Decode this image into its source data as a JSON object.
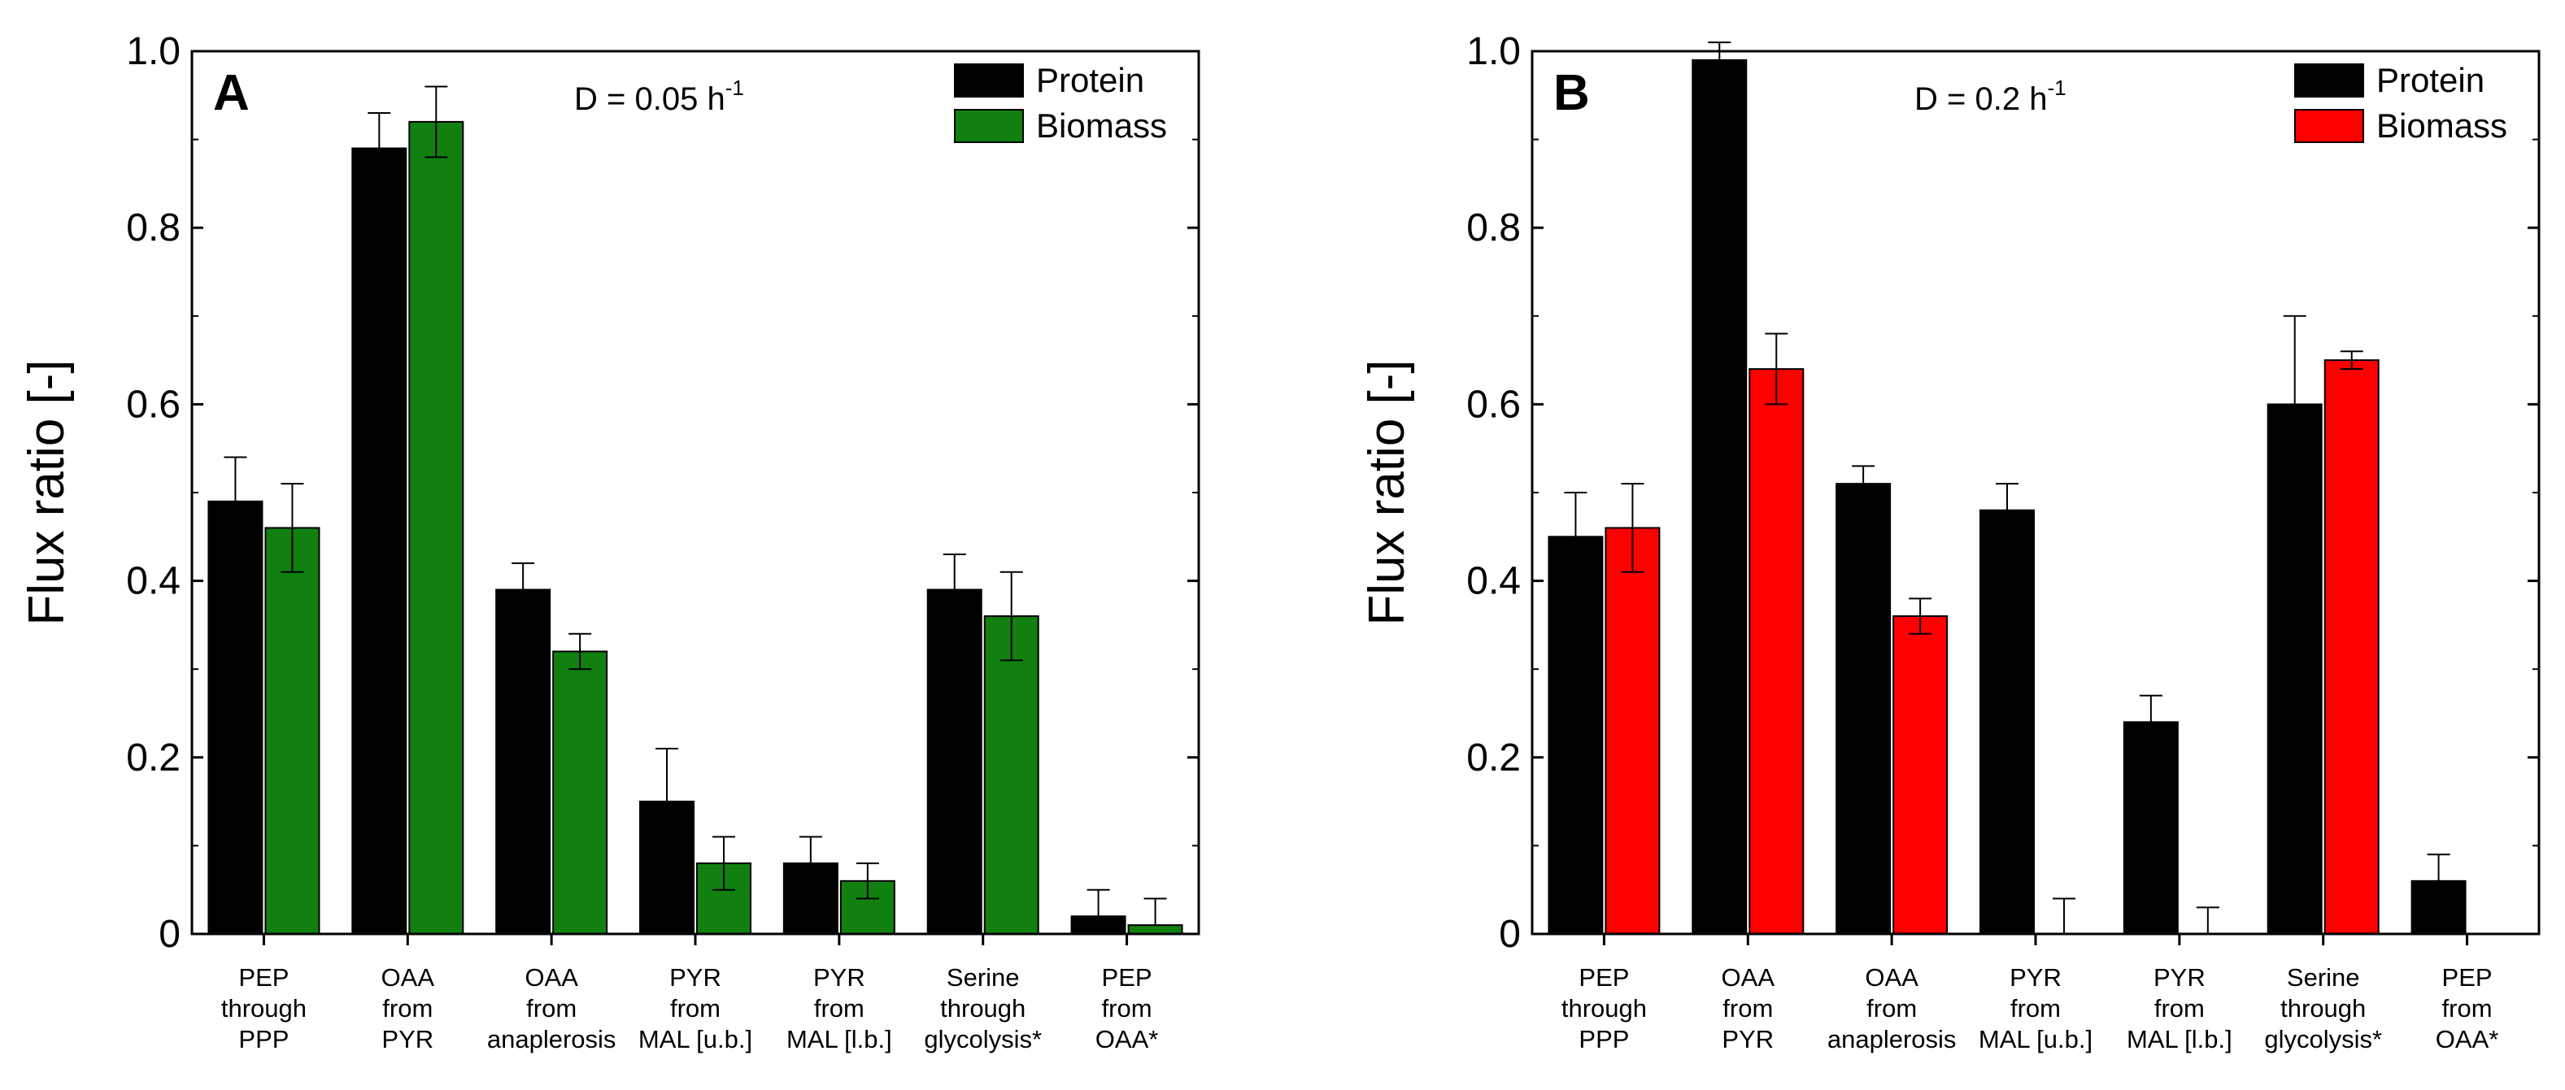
{
  "chart_data": [
    {
      "type": "bar",
      "panel_label": "A",
      "condition_label": "D = 0.05 h",
      "condition_sup": "-1",
      "ylabel": "Flux ratio [-]",
      "ylim": [
        0,
        1.0
      ],
      "yticks": [
        "0",
        "0.2",
        "0.4",
        "0.6",
        "0.8",
        "1.0"
      ],
      "categories": [
        [
          "PEP",
          "through",
          "PPP"
        ],
        [
          "OAA",
          "from",
          "PYR"
        ],
        [
          "OAA",
          "from",
          "anaplerosis"
        ],
        [
          "PYR",
          "from",
          "MAL [u.b.]"
        ],
        [
          "PYR",
          "from",
          "MAL [l.b.]"
        ],
        [
          "Serine",
          "through",
          "glycolysis*"
        ],
        [
          "PEP",
          "from",
          "OAA*"
        ]
      ],
      "series": [
        {
          "name": "Protein",
          "color": "#000000",
          "values": [
            0.49,
            0.89,
            0.39,
            0.15,
            0.08,
            0.39,
            0.02
          ],
          "errors": [
            0.05,
            0.04,
            0.03,
            0.06,
            0.03,
            0.04,
            0.03
          ]
        },
        {
          "name": "Biomass",
          "color": "#118011",
          "values": [
            0.46,
            0.92,
            0.32,
            0.08,
            0.06,
            0.36,
            0.01
          ],
          "errors": [
            0.05,
            0.04,
            0.02,
            0.03,
            0.02,
            0.05,
            0.03
          ]
        }
      ],
      "legend_position": "top-right",
      "grid": false
    },
    {
      "type": "bar",
      "panel_label": "B",
      "condition_label": "D = 0.2 h",
      "condition_sup": "-1",
      "ylabel": "Flux ratio [-]",
      "ylim": [
        0,
        1.0
      ],
      "yticks": [
        "0",
        "0.2",
        "0.4",
        "0.6",
        "0.8",
        "1.0"
      ],
      "categories": [
        [
          "PEP",
          "through",
          "PPP"
        ],
        [
          "OAA",
          "from",
          "PYR"
        ],
        [
          "OAA",
          "from",
          "anaplerosis"
        ],
        [
          "PYR",
          "from",
          "MAL [u.b.]"
        ],
        [
          "PYR",
          "from",
          "MAL [l.b.]"
        ],
        [
          "Serine",
          "through",
          "glycolysis*"
        ],
        [
          "PEP",
          "from",
          "OAA*"
        ]
      ],
      "series": [
        {
          "name": "Protein",
          "color": "#000000",
          "values": [
            0.45,
            0.99,
            0.51,
            0.48,
            0.24,
            0.6,
            0.06
          ],
          "errors": [
            0.05,
            0.02,
            0.02,
            0.03,
            0.03,
            0.1,
            0.03
          ]
        },
        {
          "name": "Biomass",
          "color": "#ff0000",
          "values": [
            0.46,
            0.64,
            0.36,
            0.0,
            0.0,
            0.65,
            0.0
          ],
          "errors": [
            0.05,
            0.04,
            0.02,
            0.04,
            0.03,
            0.01,
            0.0
          ]
        }
      ],
      "legend_position": "top-right",
      "grid": false
    }
  ]
}
